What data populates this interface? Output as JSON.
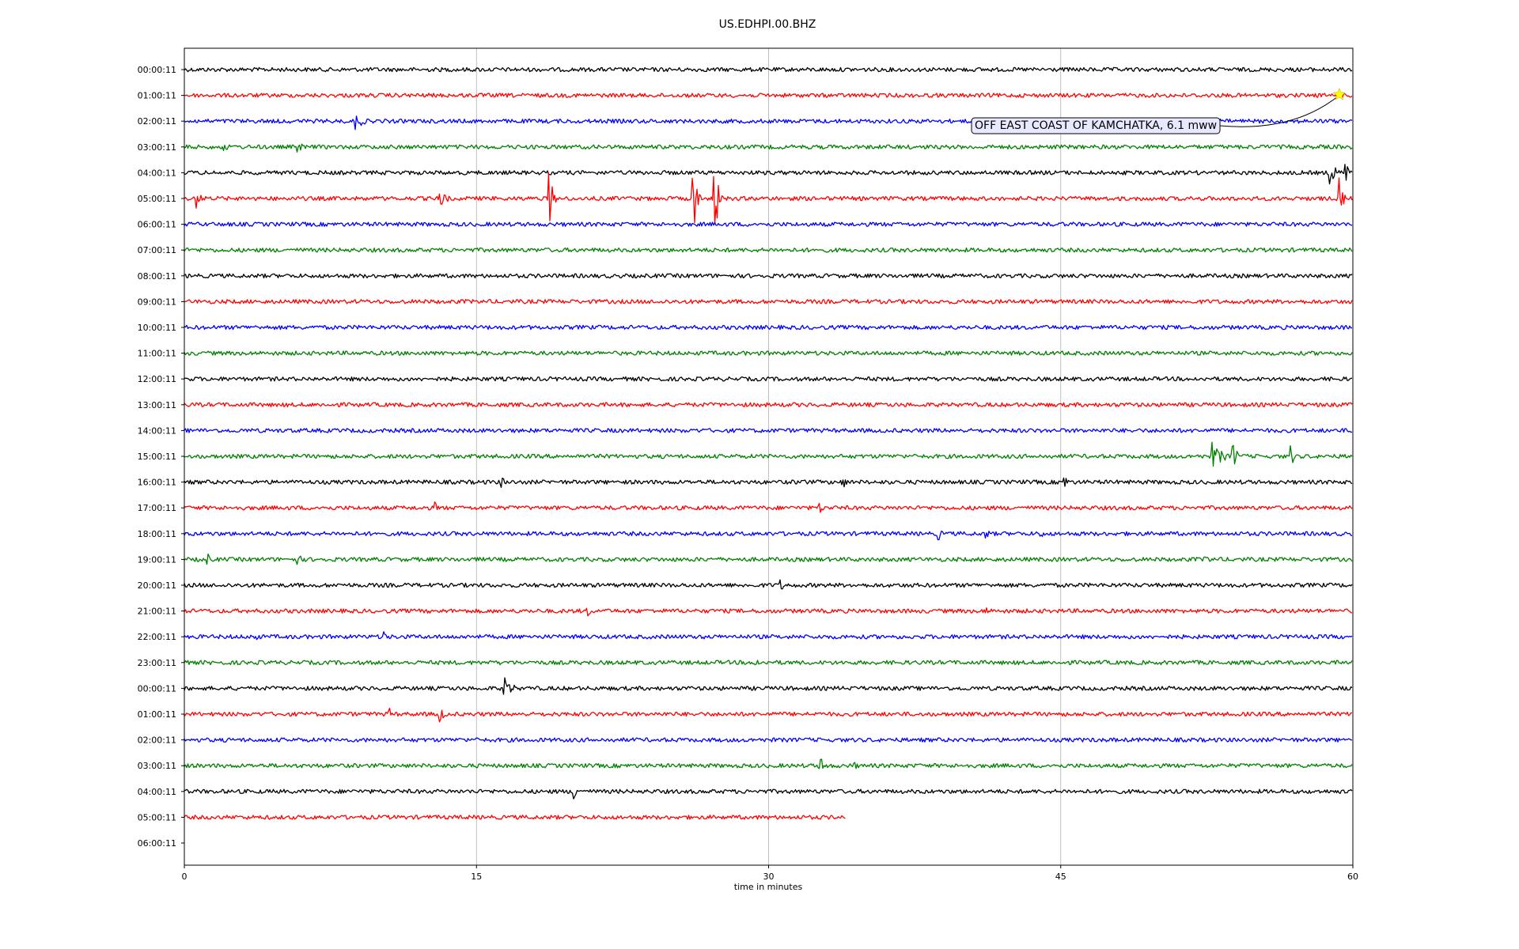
{
  "chart_data": {
    "type": "line",
    "title": "US.EDHPI.00.BHZ",
    "xlabel": "time in minutes",
    "ylabel": "",
    "xlim": [
      0,
      60
    ],
    "xticks": [
      0,
      15,
      30,
      45,
      60
    ],
    "grid": "vertical",
    "row_labels": [
      "00:00:11",
      "01:00:11",
      "02:00:11",
      "03:00:11",
      "04:00:11",
      "05:00:11",
      "06:00:11",
      "07:00:11",
      "08:00:11",
      "09:00:11",
      "10:00:11",
      "11:00:11",
      "12:00:11",
      "13:00:11",
      "14:00:11",
      "15:00:11",
      "16:00:11",
      "17:00:11",
      "18:00:11",
      "19:00:11",
      "20:00:11",
      "21:00:11",
      "22:00:11",
      "23:00:11",
      "00:00:11",
      "01:00:11",
      "02:00:11",
      "03:00:11",
      "04:00:11",
      "05:00:11",
      "06:00:11"
    ],
    "trace_colors": [
      "#000000",
      "#ff0000",
      "#0000ff",
      "#008000"
    ],
    "last_trace_end_minutes": 34,
    "bursts": [
      {
        "row": 2,
        "minute": 8.8,
        "amp": 12,
        "dur": 1.2
      },
      {
        "row": 3,
        "minute": 2.0,
        "amp": 8,
        "dur": 0.8
      },
      {
        "row": 3,
        "minute": 5.8,
        "amp": 8,
        "dur": 1.0
      },
      {
        "row": 4,
        "minute": 58.8,
        "amp": 22,
        "dur": 0.8
      },
      {
        "row": 4,
        "minute": 59.6,
        "amp": 28,
        "dur": 0.4
      },
      {
        "row": 5,
        "minute": 0.6,
        "amp": 14,
        "dur": 0.8
      },
      {
        "row": 5,
        "minute": 13.1,
        "amp": 18,
        "dur": 0.8
      },
      {
        "row": 5,
        "minute": 18.7,
        "amp": 50,
        "dur": 0.5
      },
      {
        "row": 5,
        "minute": 26.1,
        "amp": 60,
        "dur": 0.5
      },
      {
        "row": 5,
        "minute": 27.2,
        "amp": 55,
        "dur": 0.6
      },
      {
        "row": 5,
        "minute": 59.3,
        "amp": 30,
        "dur": 0.5
      },
      {
        "row": 15,
        "minute": 52.8,
        "amp": 18,
        "dur": 1.5
      },
      {
        "row": 15,
        "minute": 53.8,
        "amp": 24,
        "dur": 0.6
      },
      {
        "row": 15,
        "minute": 56.8,
        "amp": 16,
        "dur": 0.5
      },
      {
        "row": 16,
        "minute": 16.3,
        "amp": 8,
        "dur": 0.6
      },
      {
        "row": 16,
        "minute": 31.7,
        "amp": 8,
        "dur": 0.6
      },
      {
        "row": 16,
        "minute": 33.8,
        "amp": 10,
        "dur": 0.6
      },
      {
        "row": 16,
        "minute": 45.2,
        "amp": 10,
        "dur": 0.6
      },
      {
        "row": 17,
        "minute": 12.9,
        "amp": 8,
        "dur": 0.4
      },
      {
        "row": 17,
        "minute": 32.6,
        "amp": 14,
        "dur": 0.4
      },
      {
        "row": 18,
        "minute": 38.7,
        "amp": 10,
        "dur": 0.6
      },
      {
        "row": 18,
        "minute": 41.1,
        "amp": 10,
        "dur": 0.6
      },
      {
        "row": 18,
        "minute": 43.9,
        "amp": 10,
        "dur": 0.5
      },
      {
        "row": 19,
        "minute": 1.2,
        "amp": 8,
        "dur": 0.6
      },
      {
        "row": 19,
        "minute": 5.8,
        "amp": 8,
        "dur": 0.8
      },
      {
        "row": 19,
        "minute": 52.4,
        "amp": 12,
        "dur": 0.6
      },
      {
        "row": 20,
        "minute": 30.6,
        "amp": 8,
        "dur": 0.8
      },
      {
        "row": 21,
        "minute": 20.7,
        "amp": 8,
        "dur": 0.6
      },
      {
        "row": 21,
        "minute": 41.1,
        "amp": 12,
        "dur": 0.4
      },
      {
        "row": 22,
        "minute": 3.5,
        "amp": 14,
        "dur": 0.6
      },
      {
        "row": 22,
        "minute": 10.2,
        "amp": 10,
        "dur": 0.8
      },
      {
        "row": 23,
        "minute": 29.2,
        "amp": 10,
        "dur": 0.8
      },
      {
        "row": 24,
        "minute": 16.4,
        "amp": 16,
        "dur": 1.2
      },
      {
        "row": 25,
        "minute": 10.5,
        "amp": 10,
        "dur": 0.6
      },
      {
        "row": 25,
        "minute": 13.1,
        "amp": 24,
        "dur": 0.4
      },
      {
        "row": 27,
        "minute": 32.6,
        "amp": 14,
        "dur": 1.0
      },
      {
        "row": 27,
        "minute": 34.3,
        "amp": 10,
        "dur": 0.6
      },
      {
        "row": 28,
        "minute": 20.0,
        "amp": 18,
        "dur": 0.5
      }
    ],
    "annotations": [
      {
        "text": "OFF EAST COAST OF KAMCHATKA, 6.1 mww",
        "row": 1,
        "minute": 59.3,
        "marker": "star",
        "marker_color": "#ffff00"
      }
    ]
  }
}
